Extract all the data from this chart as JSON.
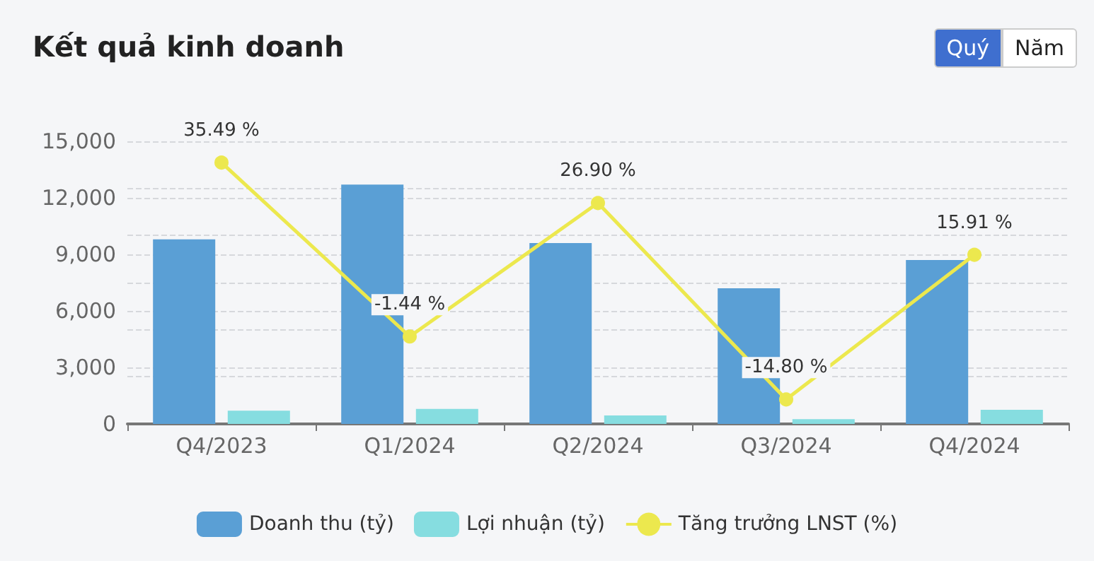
{
  "chart_data": {
    "type": "bar",
    "title": "Kết quả kinh doanh",
    "annotations": [
      "Quý",
      "Năm"
    ],
    "categories": [
      "Q4/2023",
      "Q1/2024",
      "Q2/2024",
      "Q3/2024",
      "Q4/2024"
    ],
    "series": [
      {
        "name": "Doanh thu (tỷ)",
        "color": "#5a9fd5",
        "values": [
          9800,
          12700,
          9600,
          7200,
          8700
        ]
      },
      {
        "name": "Lợi nhuận (tỷ)",
        "color": "#86dde0",
        "values": [
          700,
          800,
          450,
          250,
          750
        ]
      },
      {
        "name": "Tăng trưởng LNST (%)",
        "type": "line",
        "axis": "y2",
        "color": "#ece84e",
        "values": [
          35.49,
          -1.44,
          26.9,
          -14.8,
          15.91
        ],
        "value_labels": [
          "35.49 %",
          "-1.44 %",
          "26.90 %",
          "-14.80 %",
          "15.91 %"
        ]
      }
    ],
    "ylim": [
      0,
      15000
    ],
    "yticks": [
      0,
      {
        "value": 3000,
        "label": "3,000"
      },
      {
        "value": 6000,
        "label": "6,000"
      },
      {
        "value": 9000,
        "label": "9,000"
      },
      {
        "value": 12000,
        "label": "12,000"
      },
      {
        "value": 15000,
        "label": "15,000"
      }
    ],
    "y2lim": [
      -20,
      40
    ],
    "y2ticks": [
      {
        "value": -20,
        "label": null
      },
      {
        "value": -10,
        "label": null
      },
      {
        "value": 0,
        "label": null
      },
      {
        "value": 10,
        "label": null
      },
      {
        "value": 20,
        "label": null
      },
      {
        "value": 30,
        "label": null
      },
      {
        "value": 40,
        "label": null
      }
    ],
    "tick_labels": "xy",
    "grid": true,
    "legend": "bottom",
    "marker": "circle",
    "line_style": "solid"
  }
}
